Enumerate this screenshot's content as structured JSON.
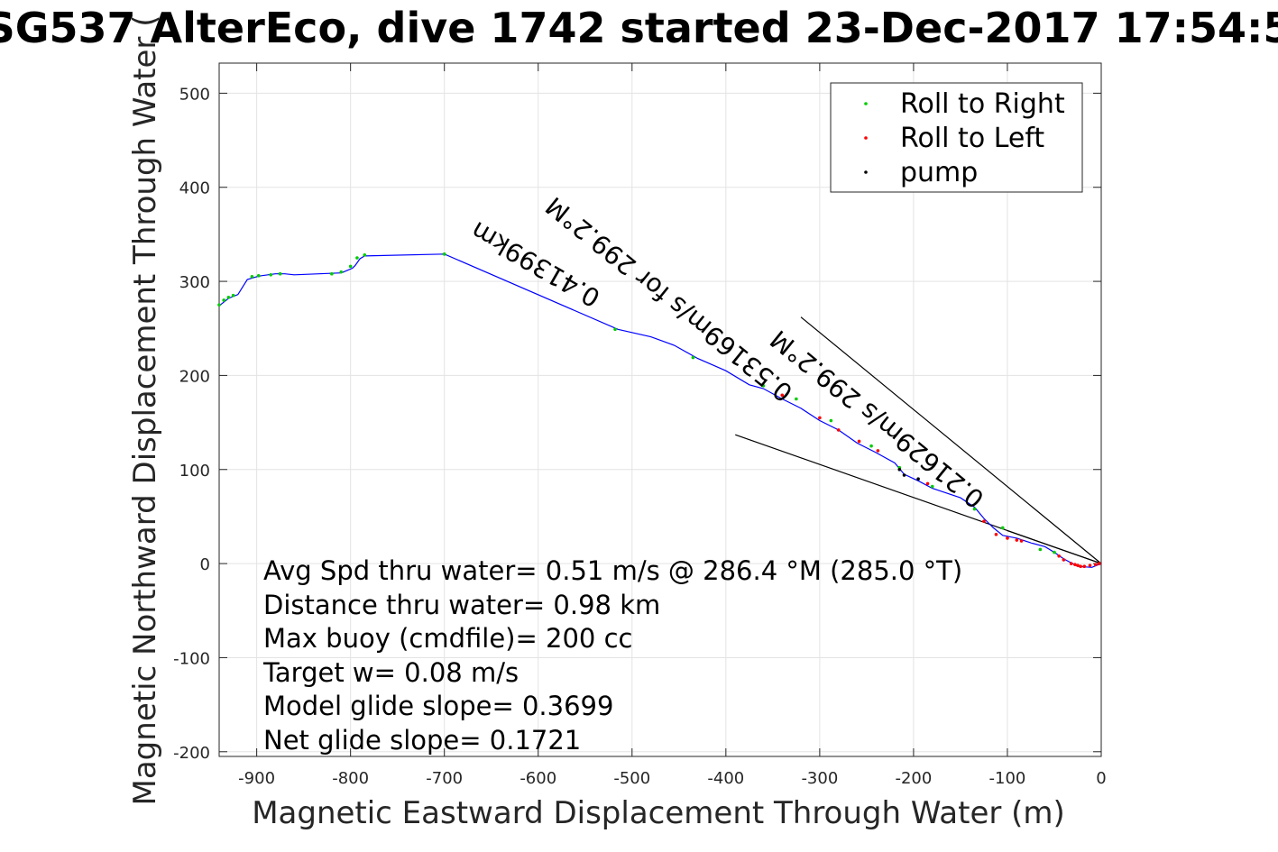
{
  "chart_data": {
    "type": "line",
    "title": "SG537 AlterEco, dive 1742 started 23-Dec-2017 17:54:5",
    "xlabel": "Magnetic Eastward Displacement Through Water (m)",
    "ylabel": "Magnetic Northward Displacement Through Water (",
    "xlim": [
      -940,
      0
    ],
    "ylim": [
      -205,
      532
    ],
    "x_ticks": [
      -900,
      -800,
      -700,
      -600,
      -500,
      -400,
      -300,
      -200,
      -100,
      0
    ],
    "y_ticks": [
      -200,
      -100,
      0,
      100,
      200,
      300,
      400,
      500
    ],
    "grid": true,
    "legend": {
      "placement": "top-right",
      "entries": [
        {
          "label": "Roll to Right",
          "color": "#00cc00"
        },
        {
          "label": "Roll to Left",
          "color": "#ff0000"
        },
        {
          "label": "pump",
          "color": "#000000"
        }
      ]
    },
    "track": {
      "color": "#0000ff",
      "x": [
        0,
        -10,
        -25,
        -40,
        -50,
        -60,
        -75,
        -90,
        -105,
        -115,
        -125,
        -135,
        -150,
        -165,
        -180,
        -195,
        -210,
        -220,
        -240,
        -260,
        -280,
        -300,
        -320,
        -340,
        -360,
        -375,
        -400,
        -430,
        -455,
        -480,
        -515,
        -700,
        -785,
        -790,
        -795,
        -798,
        -805,
        -810,
        -860,
        -870,
        -880,
        -895,
        -900,
        -910,
        -920,
        -930,
        -940
      ],
      "y": [
        0,
        -4,
        -3,
        5,
        12,
        18,
        22,
        27,
        30,
        38,
        48,
        60,
        70,
        75,
        80,
        88,
        95,
        107,
        118,
        128,
        142,
        152,
        165,
        175,
        186,
        190,
        205,
        218,
        232,
        241,
        249,
        329,
        327,
        324,
        317,
        314,
        311,
        309,
        307,
        308,
        308,
        306,
        305,
        302,
        286,
        282,
        274
      ]
    },
    "roll_right_x": [
      -940,
      -935,
      -930,
      -925,
      -905,
      -898,
      -885,
      -875,
      -820,
      -810,
      -800,
      -793,
      -785,
      -700,
      -518,
      -435,
      -360,
      -325,
      -288,
      -245,
      -215,
      -180,
      -135,
      -105,
      -65,
      -50
    ],
    "roll_right_y": [
      275,
      280,
      283,
      285,
      305,
      306,
      307,
      308,
      308,
      310,
      316,
      325,
      328,
      329,
      249,
      219,
      189,
      175,
      152,
      125,
      102,
      82,
      58,
      38,
      15,
      12
    ],
    "roll_left_x": [
      -340,
      -300,
      -280,
      -258,
      -238,
      -185,
      -125,
      -112,
      -100,
      -90,
      -85,
      -45,
      -40,
      -32,
      -28,
      -25,
      -22,
      -18,
      -12,
      -6,
      -2
    ],
    "roll_left_y": [
      179,
      155,
      142,
      130,
      120,
      85,
      45,
      31,
      27,
      25,
      24,
      8,
      4,
      0,
      -1,
      -2,
      -3,
      -3,
      -2,
      -1,
      0
    ],
    "pump_x": [
      -215,
      -210,
      -195
    ],
    "pump_y": [
      100,
      94,
      90
    ],
    "current_lines": [
      {
        "from": [
          0,
          0
        ],
        "to": [
          -320,
          262
        ],
        "color": "#000000"
      },
      {
        "from": [
          0,
          0
        ],
        "to": [
          -390,
          137
        ],
        "color": "#000000"
      },
      {
        "from": [
          0,
          0
        ],
        "to": [
          -100,
          35
        ],
        "color": "#000000"
      }
    ],
    "annotations": [
      {
        "text": "0.41399km",
        "x": -532,
        "y": 288,
        "rotation": 30
      },
      {
        "text": "0.53169m/s for 299.2°M",
        "x": -327,
        "y": 185,
        "rotation": 39
      },
      {
        "text": "0.21629m/s 299.2°M",
        "x": -123,
        "y": 72,
        "rotation": 39
      }
    ],
    "stats": [
      "Avg Spd thru water=  0.51 m/s @ 286.4 °M (285.0 °T)",
      "Distance thru water=  0.98 km",
      "Max buoy (cmdfile)= 200 cc",
      "Target w= 0.08 m/s",
      "Model glide slope= 0.3699",
      "Net glide slope= 0.1721"
    ]
  }
}
